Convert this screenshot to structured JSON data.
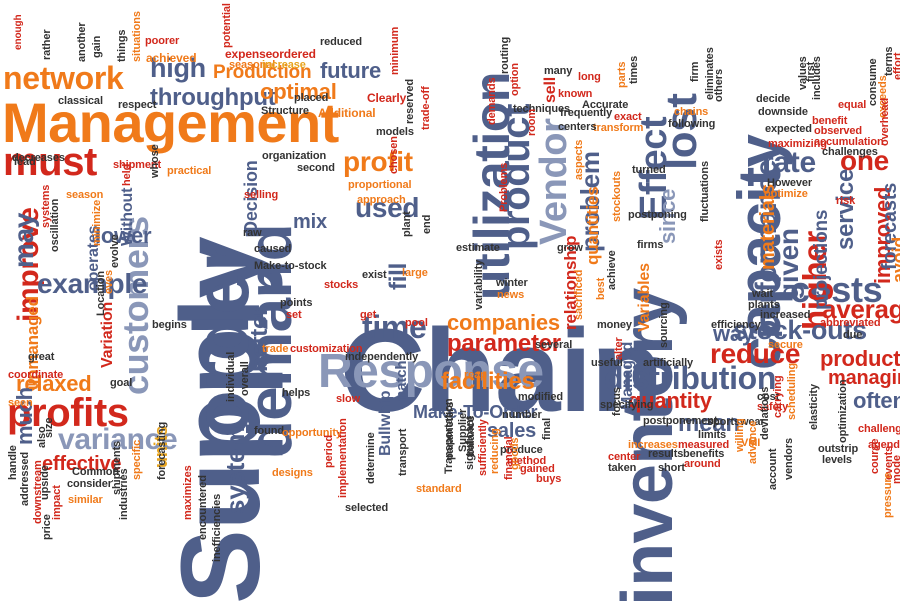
{
  "colors": {
    "slate": "#4f5f8a",
    "slate_light": "#8a97b8",
    "orange": "#f07a1a",
    "red": "#d2281c",
    "gold": "#e8a41e",
    "gray": "#333333"
  },
  "words": {
    "supply": "Supply",
    "chain": "Chain",
    "inventory": "inventory",
    "order": "order",
    "demand": "demand",
    "management": "Management",
    "capacity": "capacity",
    "response": "Response",
    "utilization": "utilization",
    "network": "network",
    "profits": "profits",
    "must": "must",
    "time": "time",
    "customers": "customers",
    "high": "high",
    "lost": "lost",
    "costs": "costs",
    "product": "product",
    "vendor": "Vendor",
    "effect": "Effect",
    "performance": "performance",
    "distribution": "distribution",
    "higher": "higher",
    "throughput": "throughput",
    "production": "Production",
    "profit": "profit",
    "variance": "variance",
    "rate": "rate",
    "one": "one",
    "reduce": "reduce",
    "mean": "mean",
    "stock_outs": "stock-outs",
    "average": "average",
    "improve": "improve",
    "example": "example",
    "may": "may",
    "optimal": "optimal",
    "future": "future",
    "parameter": "parameter",
    "used": "used",
    "given": "given",
    "problem": "problem",
    "quantity": "quantity",
    "products": "products",
    "managing": "managing",
    "facilities": "facilities",
    "companies": "companies",
    "make_to_order": "Make-To-Order",
    "sales": "sales",
    "lower": "lower",
    "relaxed": "relaxed",
    "effective": "effective",
    "better": "better",
    "system": "system",
    "service": "service",
    "improved": "improved",
    "forecasts": "forecasts",
    "materials": "materials",
    "projections": "projections",
    "avoid": "avoid",
    "since": "since",
    "way": "way",
    "often": "often",
    "mix": "mix",
    "fill": "fill",
    "much": "much",
    "unmanaged": "unmanaged",
    "units": "units",
    "variation": "Variation",
    "without": "Without",
    "decision": "Decision",
    "bullwhip": "Bullwhip",
    "match": "match",
    "relationship": "relationship",
    "quantities": "quantities",
    "variables": "Variables",
    "managed": "Managed",
    "sell": "sell",
    "reduced": "reduced",
    "operates": "operates",
    "additional": "Additional",
    "structure": "Structure",
    "placed": "placed",
    "clearly": "Clearly",
    "achieved": "achieved",
    "expense": "expense",
    "ordered": "ordered",
    "seasonal": "seasonal",
    "increase": "increase",
    "potential": "potential",
    "poorer": "poorer",
    "enough": "enough",
    "rather": "rather",
    "another": "another",
    "gain": "gain",
    "things": "things",
    "situations": "situations",
    "classical": "classical",
    "respect": "respect",
    "decreases": "decreases",
    "lead": "lead",
    "shipment": "shipment",
    "practical": "practical",
    "organization": "organization",
    "second": "second",
    "models": "models",
    "proportional": "proportional",
    "approach": "approach",
    "selling": "selling",
    "make_to_stock": "Make-to-stock",
    "points": "points",
    "set": "set",
    "stocks": "stocks",
    "get": "get",
    "trade": "trade",
    "customization": "customization",
    "independently": "independently",
    "helps": "helps",
    "found": "found",
    "opportunity": "opportunity",
    "designs": "designs",
    "implementation": "implementation",
    "period": "period",
    "transport": "transport",
    "slow": "slow",
    "transportation": "Transportation",
    "determine": "determine",
    "selected": "selected",
    "modified": "modified",
    "significant": "significant",
    "standard": "standard",
    "produce": "produce",
    "buys": "buys",
    "reap": "reap",
    "pool": "pool",
    "several": "several",
    "winter": "winter",
    "news": "news",
    "estimate": "estimate",
    "exist": "exist",
    "large": "large",
    "plant": "plant",
    "end": "end",
    "chosen": "chosen",
    "reserved": "reserved",
    "trade_off": "trade-off",
    "option": "option",
    "many": "many",
    "long": "long",
    "known": "known",
    "frequently": "frequently",
    "exact": "exact",
    "transform": "transform",
    "accurate": "Accurate",
    "techniques": "techniques",
    "centers": "centers",
    "turned": "turned",
    "fluctuations": "fluctuations",
    "postponing": "postponing",
    "firms": "firms",
    "grow": "grow",
    "useful": "useful",
    "money": "money",
    "sourcing": "sourcing",
    "artificially": "artificially",
    "focus": "focus",
    "postponement": "postponement",
    "specifying": "specifying",
    "increases": "increases",
    "measured": "measured",
    "results": "results",
    "benefits": "benefits",
    "center": "center",
    "taken": "taken",
    "short": "short",
    "around": "around",
    "limits": "limits",
    "sportswear": "sportswear",
    "cost": "cost",
    "safety": "safety",
    "efficiency": "efficiency",
    "increased": "increased",
    "secure": "secure",
    "wait": "wait",
    "plants": "plants",
    "exists": "exists",
    "decide": "decide",
    "downside": "downside",
    "expected": "expected",
    "however": "However",
    "optimize": "optimize",
    "maximizing": "maximizing",
    "benefit": "benefit",
    "observed": "observed",
    "accumulation": "accumulation",
    "challenges": "challenges",
    "equal": "equal",
    "consume": "consume",
    "exceeds": "exceeds",
    "overhead": "overhead",
    "effort": "effort",
    "terms": "terms",
    "values": "values",
    "includes": "includes",
    "first": "first",
    "risk": "risk",
    "abbreviated": "abbreviated",
    "due": "due",
    "challenge": "challenge",
    "agenda": "agenda",
    "outstrip": "outstrip",
    "levels": "levels",
    "optimization": "optimization",
    "elasticity": "elasticity",
    "carrying": "carrying",
    "scheduling": "scheduling",
    "deviations": "deviations",
    "vendors": "vendors",
    "account": "account",
    "vmi": "VMI",
    "willing": "willing",
    "advance": "advance",
    "course": "course",
    "events": "events",
    "mode": "mode",
    "pressure": "pressure",
    "others": "others",
    "following": "following",
    "chains": "chains",
    "firm": "firm",
    "eliminates": "eliminates",
    "parts": "parts",
    "times": "times",
    "routing": "routing",
    "demands": "demands",
    "room": "room",
    "problems": "Problems",
    "aspects": "aspects",
    "stockouts": "stockouts",
    "best": "best",
    "achieve": "achieve",
    "sacrificed": "sacrificed",
    "variability": "variability",
    "alter": "alter",
    "method": "method",
    "gained": "gained",
    "balance": "balance",
    "sufficiently": "sufficiently",
    "supplier": "Supplier",
    "reducing": "reducing",
    "financial": "financial",
    "final": "final",
    "parameters": "parameters",
    "number": "number",
    "goods": "goods",
    "caused": "caused",
    "raw": "raw",
    "overall": "overall",
    "individual": "individual",
    "minimum": "minimum",
    "minimize": "minimize",
    "common": "Common",
    "consider": "consider",
    "forecasting": "forecasting",
    "maximizes": "maximizes",
    "encountered": "encountered",
    "inefficiencies": "inefficiencies",
    "industries": "industries",
    "specific": "specific",
    "shipments": "shipments",
    "similar": "similar",
    "impact": "impact",
    "upside": "upside",
    "handle": "handle",
    "addressed": "addressed",
    "downstream": "downstream",
    "coordinate": "coordinate",
    "seen": "seen",
    "size": "size",
    "also": "also",
    "price": "price",
    "goal": "goal",
    "great": "great",
    "begins": "begins",
    "whose": "whose",
    "held": "held",
    "season": "season",
    "systems": "systems",
    "oscillation": "oscillation",
    "evolve": "evolve",
    "location": "Location",
    "eves": "eves"
  }
}
